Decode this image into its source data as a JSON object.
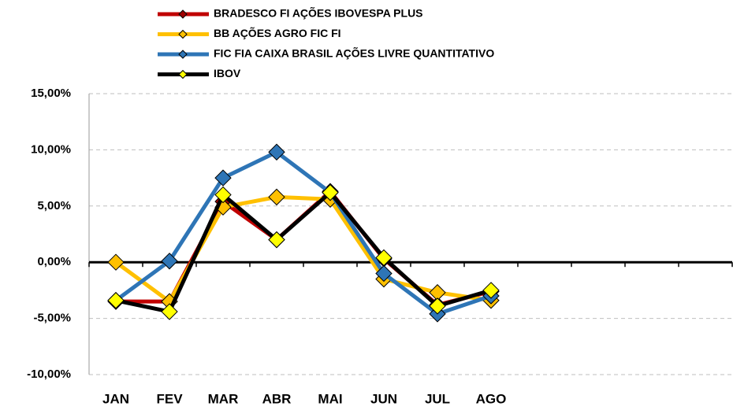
{
  "chart_data": {
    "type": "line",
    "categories": [
      "JAN",
      "FEV",
      "MAR",
      "ABR",
      "MAI",
      "JUN",
      "JUL",
      "AGO",
      null,
      null,
      null,
      null
    ],
    "series": [
      {
        "name": "BRADESCO FI AÇÕES IBOVESPA PLUS",
        "color": "#c00000",
        "marker_color": "#a00000",
        "values": [
          -3.5,
          -3.5,
          5.4,
          2.0,
          6.3,
          0.3,
          -3.8,
          -2.6,
          null,
          null,
          null,
          null
        ]
      },
      {
        "name": "BB AÇÕES AGRO FIC FI",
        "color": "#ffc000",
        "marker_color": "#ffc000",
        "values": [
          0.0,
          -3.5,
          4.9,
          5.8,
          5.6,
          -1.5,
          -2.7,
          -3.4,
          null,
          null,
          null,
          null
        ]
      },
      {
        "name": "FIC FIA CAIXA BRASIL AÇÕES LIVRE QUANTITATIVO",
        "color": "#2e75b6",
        "marker_color": "#2e75b6",
        "values": [
          -3.4,
          0.1,
          7.5,
          9.8,
          6.2,
          -1.0,
          -4.6,
          -3.0,
          null,
          null,
          null,
          null
        ]
      },
      {
        "name": "IBOV",
        "color": "#000000",
        "marker_color": "#ffff00",
        "values": [
          -3.4,
          -4.4,
          6.0,
          2.0,
          6.2,
          0.4,
          -3.9,
          -2.5,
          null,
          null,
          null,
          null
        ]
      }
    ],
    "ylim": [
      -10,
      15
    ],
    "yticks": [
      {
        "value": -10,
        "label": "-10,00%"
      },
      {
        "value": -5,
        "label": "-5,00%"
      },
      {
        "value": 0,
        "label": "0,00%"
      },
      {
        "value": 5,
        "label": "5,00%"
      },
      {
        "value": 10,
        "label": "10,00%"
      },
      {
        "value": 15,
        "label": "15,00%"
      }
    ],
    "grid": true,
    "legend": "top"
  }
}
